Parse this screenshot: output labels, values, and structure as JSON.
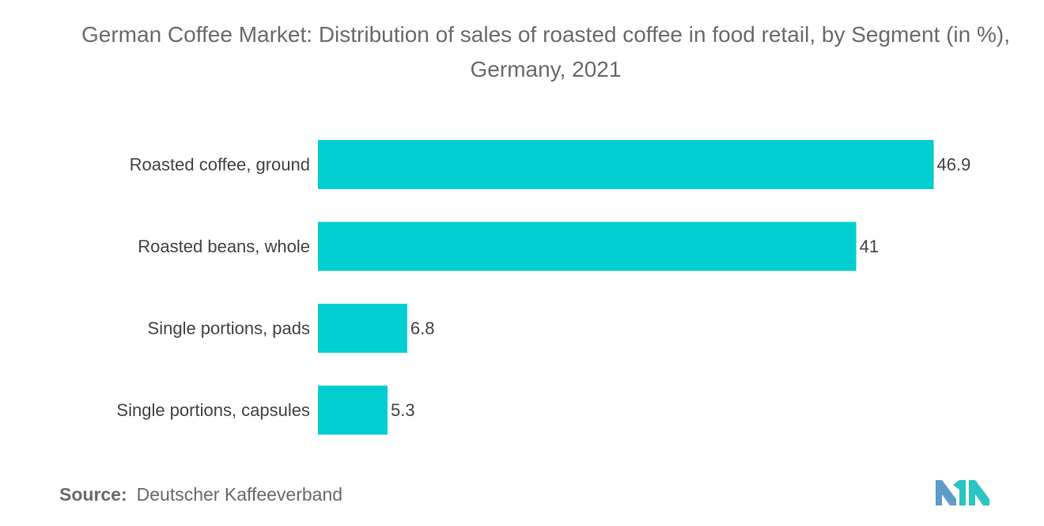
{
  "chart_data": {
    "type": "bar",
    "orientation": "horizontal",
    "title": "German Coffee Market: Distribution of sales of roasted coffee in food retail, by Segment (in %), Germany, 2021",
    "xlabel": "",
    "ylabel": "",
    "categories": [
      "Roasted coffee, ground",
      "Roasted beans, whole",
      "Single portions, pads",
      "Single portions, capsules"
    ],
    "values": [
      46.9,
      41,
      6.8,
      5.3
    ],
    "value_labels": [
      "46.9",
      "41",
      "6.8",
      "5.3"
    ],
    "xlim": [
      0,
      50
    ],
    "grid": false,
    "legend": "none",
    "bar_color": "#00CED1"
  },
  "source": {
    "label": "Source:",
    "text": "Deutscher Kaffeeverband"
  },
  "logo": {
    "icon": "brand-logo-icon",
    "colors": [
      "#5E9CC8",
      "#2BC4C4"
    ]
  }
}
